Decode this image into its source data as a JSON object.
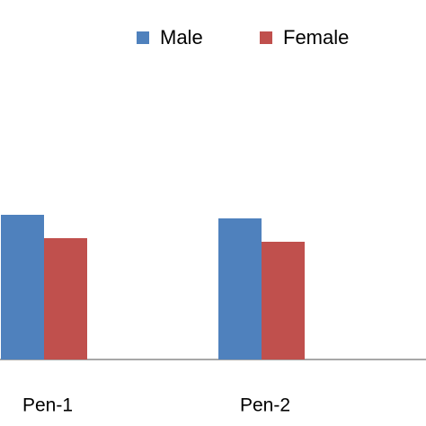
{
  "chart_data": {
    "type": "bar",
    "categories": [
      "Pen-1",
      "Pen-2"
    ],
    "series": [
      {
        "name": "Male",
        "color": "#4f81bd",
        "values": [
          161,
          157
        ]
      },
      {
        "name": "Female",
        "color": "#c0504d",
        "values": [
          135,
          131
        ]
      }
    ],
    "legend": "top"
  }
}
